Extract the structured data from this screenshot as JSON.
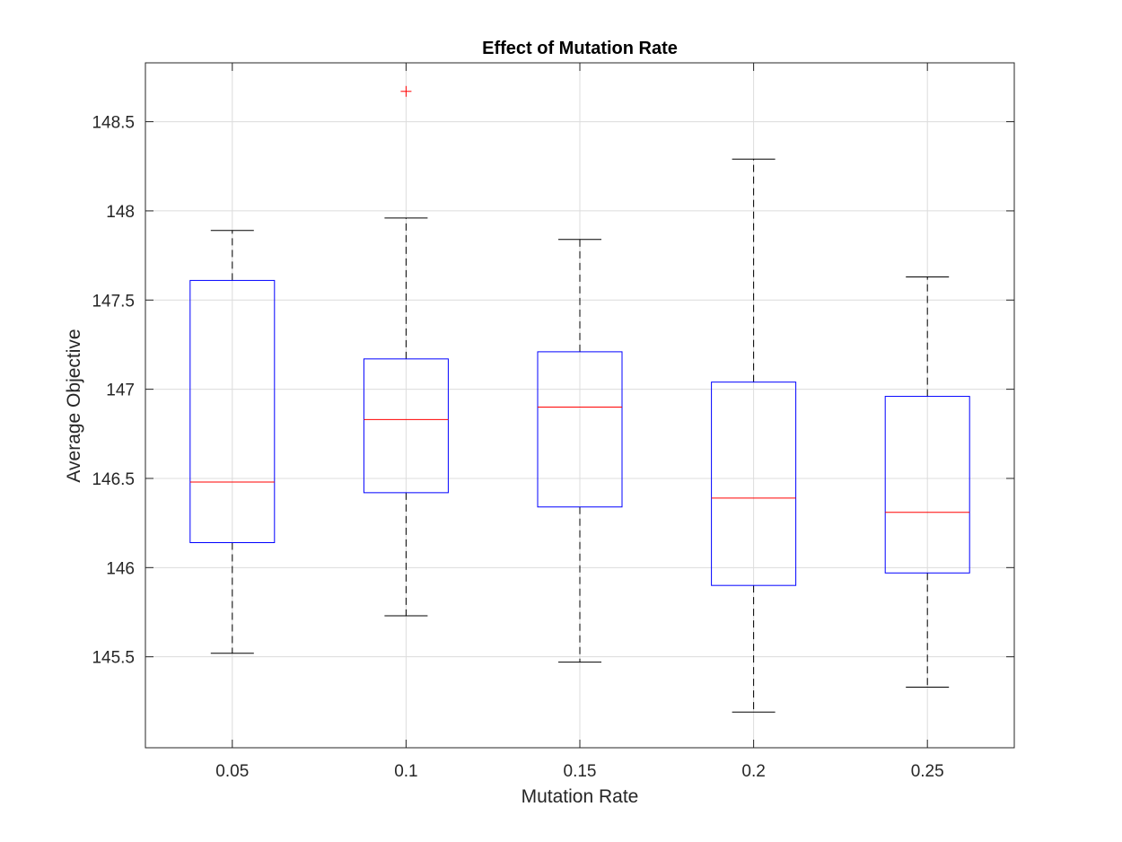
{
  "chart_data": {
    "type": "box",
    "title": "Effect of Mutation Rate",
    "xlabel": "Mutation Rate",
    "ylabel": "Average Objective",
    "categories": [
      "0.05",
      "0.1",
      "0.15",
      "0.2",
      "0.25"
    ],
    "ylim": [
      144.99,
      148.83
    ],
    "yticks": [
      145.5,
      146,
      146.5,
      147,
      147.5,
      148,
      148.5
    ],
    "ytick_labels": [
      "145.5",
      "146",
      "146.5",
      "147",
      "147.5",
      "148",
      "148.5"
    ],
    "grid": true,
    "boxes": [
      {
        "category": "0.05",
        "whisker_low": 145.52,
        "q1": 146.14,
        "median": 146.48,
        "q3": 147.61,
        "whisker_high": 147.89,
        "outliers": []
      },
      {
        "category": "0.1",
        "whisker_low": 145.73,
        "q1": 146.42,
        "median": 146.83,
        "q3": 147.17,
        "whisker_high": 147.96,
        "outliers": [
          148.67
        ]
      },
      {
        "category": "0.15",
        "whisker_low": 145.47,
        "q1": 146.34,
        "median": 146.9,
        "q3": 147.21,
        "whisker_high": 147.84,
        "outliers": []
      },
      {
        "category": "0.2",
        "whisker_low": 145.19,
        "q1": 145.9,
        "median": 146.39,
        "q3": 147.04,
        "whisker_high": 148.29,
        "outliers": []
      },
      {
        "category": "0.25",
        "whisker_low": 145.33,
        "q1": 145.97,
        "median": 146.31,
        "q3": 146.96,
        "whisker_high": 147.63,
        "outliers": []
      }
    ],
    "colors": {
      "box": "#0000ff",
      "median": "#ff0000",
      "whisker": "#000000",
      "outlier": "#ff0000",
      "grid": "#dcdcdc",
      "axis": "#262626"
    }
  }
}
